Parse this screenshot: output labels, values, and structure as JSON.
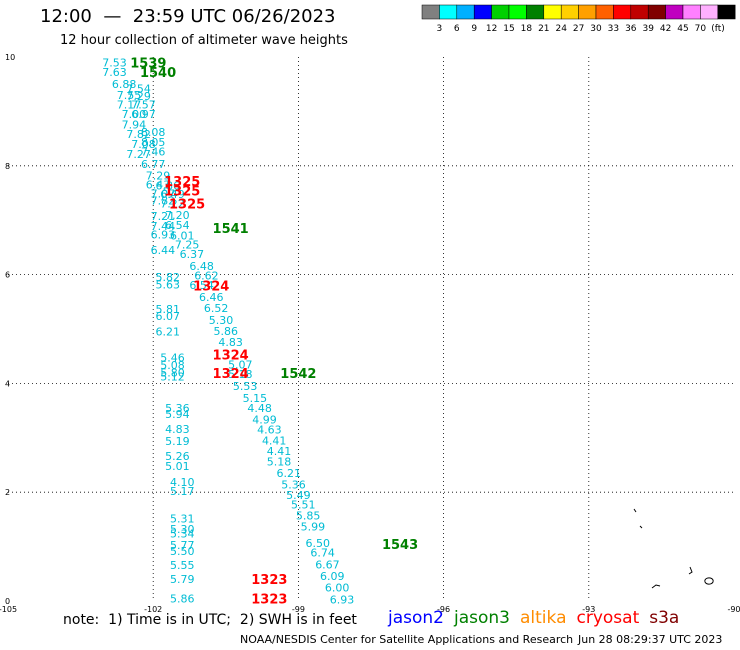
{
  "header": {
    "title": "12:00  —  23:59 UTC 06/26/2023",
    "subtitle": "12 hour collection of altimeter wave heights"
  },
  "colorbar": {
    "colors": [
      "#808080",
      "#00ffff",
      "#00b0ff",
      "#0000ff",
      "#00d000",
      "#00ff00",
      "#008000",
      "#ffff00",
      "#ffd000",
      "#ffa000",
      "#ff6000",
      "#ff0000",
      "#c00000",
      "#800000",
      "#c000c0",
      "#ff80ff",
      "#ffb0ff",
      "#000000"
    ],
    "labels": [
      "3",
      "6",
      "9",
      "12",
      "15",
      "18",
      "21",
      "24",
      "27",
      "30",
      "33",
      "36",
      "39",
      "42",
      "45",
      "70"
    ],
    "unit": "(ft)"
  },
  "footer": {
    "note": "note:  1) Time is in UTC;  2) SWH is in feet",
    "credit": "NOAA/NESDIS Center for Satellite Applications and Research",
    "timestamp": "Jun 28 08:29:37 UTC 2023"
  },
  "legend": [
    {
      "name": "jason2",
      "color": "#0000ff"
    },
    {
      "name": "jason3",
      "color": "#008000"
    },
    {
      "name": "altika",
      "color": "#ff8c00"
    },
    {
      "name": "cryosat",
      "color": "#ff0000"
    },
    {
      "name": "s3a",
      "color": "#800000"
    }
  ],
  "chart_data": {
    "type": "scatter",
    "title": "12:00  —  23:59 UTC 06/26/2023",
    "subtitle": "12 hour collection of altimeter wave heights",
    "xlim": [
      -105,
      -90
    ],
    "ylim": [
      0,
      10
    ],
    "xticks": [
      -105,
      -102,
      -99,
      -96,
      -93,
      -90
    ],
    "xtick_labels": [
      "-105",
      "-102",
      "-99",
      "-96",
      "-93",
      "-90"
    ],
    "yticks": [
      0,
      2,
      4,
      6,
      8,
      10
    ],
    "ytick_labels": [
      "0",
      "2",
      "4",
      "6",
      "8",
      "10"
    ],
    "grid": true,
    "units": "ft",
    "wave_heights": [
      {
        "lon": -102.8,
        "lat": 9.9,
        "value": "7.53"
      },
      {
        "lon": -102.8,
        "lat": 9.72,
        "value": "7.63"
      },
      {
        "lon": -102.6,
        "lat": 9.5,
        "value": "6.88"
      },
      {
        "lon": -102.5,
        "lat": 9.3,
        "value": "7.55"
      },
      {
        "lon": -102.3,
        "lat": 9.42,
        "value": "7.54"
      },
      {
        "lon": -102.3,
        "lat": 9.28,
        "value": "7.29"
      },
      {
        "lon": -102.5,
        "lat": 9.13,
        "value": "7.17"
      },
      {
        "lon": -102.2,
        "lat": 9.13,
        "value": "7.57"
      },
      {
        "lon": -102.4,
        "lat": 8.95,
        "value": "7.00"
      },
      {
        "lon": -102.2,
        "lat": 8.95,
        "value": "6.97"
      },
      {
        "lon": -102.4,
        "lat": 8.76,
        "value": "7.94"
      },
      {
        "lon": -102.0,
        "lat": 8.62,
        "value": "8.08"
      },
      {
        "lon": -102.3,
        "lat": 8.58,
        "value": "7.82"
      },
      {
        "lon": -102.2,
        "lat": 8.4,
        "value": "7.08"
      },
      {
        "lon": -102.0,
        "lat": 8.44,
        "value": "8.05"
      },
      {
        "lon": -102.3,
        "lat": 8.22,
        "value": "7.27"
      },
      {
        "lon": -102.0,
        "lat": 8.26,
        "value": "7.46"
      },
      {
        "lon": -102.0,
        "lat": 8.03,
        "value": "6.77"
      },
      {
        "lon": -101.9,
        "lat": 7.82,
        "value": "7.29"
      },
      {
        "lon": -101.9,
        "lat": 7.66,
        "value": "6.43"
      },
      {
        "lon": -101.7,
        "lat": 7.64,
        "value": "6.86"
      },
      {
        "lon": -101.8,
        "lat": 7.49,
        "value": "7.07"
      },
      {
        "lon": -101.8,
        "lat": 7.36,
        "value": "7.82"
      },
      {
        "lon": -101.6,
        "lat": 7.48,
        "value": "6.49"
      },
      {
        "lon": -101.6,
        "lat": 7.31,
        "value": "7.22"
      },
      {
        "lon": -101.8,
        "lat": 7.08,
        "value": "7.21"
      },
      {
        "lon": -101.5,
        "lat": 7.1,
        "value": "7.20"
      },
      {
        "lon": -101.8,
        "lat": 6.89,
        "value": "7.44"
      },
      {
        "lon": -101.5,
        "lat": 6.91,
        "value": "6.54"
      },
      {
        "lon": -101.8,
        "lat": 6.74,
        "value": "6.93"
      },
      {
        "lon": -101.4,
        "lat": 6.72,
        "value": "6.01"
      },
      {
        "lon": -101.3,
        "lat": 6.55,
        "value": "7.25"
      },
      {
        "lon": -101.8,
        "lat": 6.45,
        "value": "6.44"
      },
      {
        "lon": -101.2,
        "lat": 6.38,
        "value": "6.37"
      },
      {
        "lon": -101.0,
        "lat": 6.16,
        "value": "6.48"
      },
      {
        "lon": -101.7,
        "lat": 5.96,
        "value": "5.82"
      },
      {
        "lon": -100.9,
        "lat": 5.98,
        "value": "6.62"
      },
      {
        "lon": -101.7,
        "lat": 5.82,
        "value": "5.63"
      },
      {
        "lon": -101.0,
        "lat": 5.81,
        "value": "6.54"
      },
      {
        "lon": -100.8,
        "lat": 5.59,
        "value": "6.46"
      },
      {
        "lon": -101.7,
        "lat": 5.37,
        "value": "5.81"
      },
      {
        "lon": -101.7,
        "lat": 5.24,
        "value": "6.07"
      },
      {
        "lon": -100.7,
        "lat": 5.39,
        "value": "6.52"
      },
      {
        "lon": -100.6,
        "lat": 5.17,
        "value": "5.30"
      },
      {
        "lon": -101.7,
        "lat": 4.95,
        "value": "6.21"
      },
      {
        "lon": -100.5,
        "lat": 4.96,
        "value": "5.86"
      },
      {
        "lon": -100.4,
        "lat": 4.76,
        "value": "4.83"
      },
      {
        "lon": -101.6,
        "lat": 4.48,
        "value": "5.46"
      },
      {
        "lon": -101.6,
        "lat": 4.34,
        "value": "5.08"
      },
      {
        "lon": -100.2,
        "lat": 4.35,
        "value": "5.07"
      },
      {
        "lon": -101.6,
        "lat": 4.2,
        "value": "5.80"
      },
      {
        "lon": -101.6,
        "lat": 4.13,
        "value": "5.12"
      },
      {
        "lon": -100.2,
        "lat": 4.17,
        "value": "5.18"
      },
      {
        "lon": -100.1,
        "lat": 3.95,
        "value": "5.53"
      },
      {
        "lon": -99.9,
        "lat": 3.73,
        "value": "5.15"
      },
      {
        "lon": -101.5,
        "lat": 3.55,
        "value": "5.36"
      },
      {
        "lon": -99.8,
        "lat": 3.55,
        "value": "4.48"
      },
      {
        "lon": -101.5,
        "lat": 3.44,
        "value": "5.94"
      },
      {
        "lon": -99.7,
        "lat": 3.34,
        "value": "4.99"
      },
      {
        "lon": -101.5,
        "lat": 3.16,
        "value": "4.83"
      },
      {
        "lon": -99.6,
        "lat": 3.15,
        "value": "4.63"
      },
      {
        "lon": -101.5,
        "lat": 2.94,
        "value": "5.19"
      },
      {
        "lon": -99.5,
        "lat": 2.95,
        "value": "4.41"
      },
      {
        "lon": -99.4,
        "lat": 2.76,
        "value": "4.41"
      },
      {
        "lon": -101.5,
        "lat": 2.67,
        "value": "5.26"
      },
      {
        "lon": -99.4,
        "lat": 2.56,
        "value": "5.18"
      },
      {
        "lon": -101.5,
        "lat": 2.48,
        "value": "5.01"
      },
      {
        "lon": -99.2,
        "lat": 2.35,
        "value": "6.21"
      },
      {
        "lon": -101.4,
        "lat": 2.19,
        "value": "4.10"
      },
      {
        "lon": -99.1,
        "lat": 2.14,
        "value": "5.36"
      },
      {
        "lon": -101.4,
        "lat": 2.02,
        "value": "5.17"
      },
      {
        "lon": -99.0,
        "lat": 1.95,
        "value": "5.49"
      },
      {
        "lon": -98.9,
        "lat": 1.77,
        "value": "5.51"
      },
      {
        "lon": -101.4,
        "lat": 1.52,
        "value": "5.31"
      },
      {
        "lon": -98.8,
        "lat": 1.57,
        "value": "5.85"
      },
      {
        "lon": -101.4,
        "lat": 1.32,
        "value": "5.30"
      },
      {
        "lon": -101.4,
        "lat": 1.24,
        "value": "5.34"
      },
      {
        "lon": -98.7,
        "lat": 1.37,
        "value": "5.99"
      },
      {
        "lon": -101.4,
        "lat": 1.03,
        "value": "5.77"
      },
      {
        "lon": -98.6,
        "lat": 1.07,
        "value": "6.50"
      },
      {
        "lon": -101.4,
        "lat": 0.92,
        "value": "5.50"
      },
      {
        "lon": -98.5,
        "lat": 0.89,
        "value": "6.74"
      },
      {
        "lon": -101.4,
        "lat": 0.66,
        "value": "5.55"
      },
      {
        "lon": -98.4,
        "lat": 0.67,
        "value": "6.67"
      },
      {
        "lon": -101.4,
        "lat": 0.4,
        "value": "5.79"
      },
      {
        "lon": -98.3,
        "lat": 0.46,
        "value": "6.09"
      },
      {
        "lon": -98.2,
        "lat": 0.25,
        "value": "6.00"
      },
      {
        "lon": -101.4,
        "lat": 0.05,
        "value": "5.86"
      },
      {
        "lon": -98.1,
        "lat": 0.03,
        "value": "6.93"
      }
    ],
    "pass_labels": [
      {
        "lon": -102.1,
        "lat": 9.9,
        "text": "1539",
        "color": "#008000"
      },
      {
        "lon": -101.9,
        "lat": 9.72,
        "text": "1540",
        "color": "#008000"
      },
      {
        "lon": -101.4,
        "lat": 7.72,
        "text": "1325",
        "color": "#ff0000"
      },
      {
        "lon": -101.4,
        "lat": 7.55,
        "text": "1325",
        "color": "#ff0000"
      },
      {
        "lon": -101.3,
        "lat": 7.31,
        "text": "1325",
        "color": "#ff0000"
      },
      {
        "lon": -100.4,
        "lat": 6.86,
        "text": "1541",
        "color": "#008000"
      },
      {
        "lon": -100.8,
        "lat": 5.8,
        "text": "1324",
        "color": "#ff0000"
      },
      {
        "lon": -100.4,
        "lat": 4.53,
        "text": "1324",
        "color": "#ff0000"
      },
      {
        "lon": -100.4,
        "lat": 4.19,
        "text": "1324",
        "color": "#ff0000"
      },
      {
        "lon": -99.0,
        "lat": 4.19,
        "text": "1542",
        "color": "#008000"
      },
      {
        "lon": -96.9,
        "lat": 1.05,
        "text": "1543",
        "color": "#008000"
      },
      {
        "lon": -99.6,
        "lat": 0.4,
        "text": "1323",
        "color": "#ff0000"
      },
      {
        "lon": -99.6,
        "lat": 0.05,
        "text": "1323",
        "color": "#ff0000"
      }
    ]
  }
}
